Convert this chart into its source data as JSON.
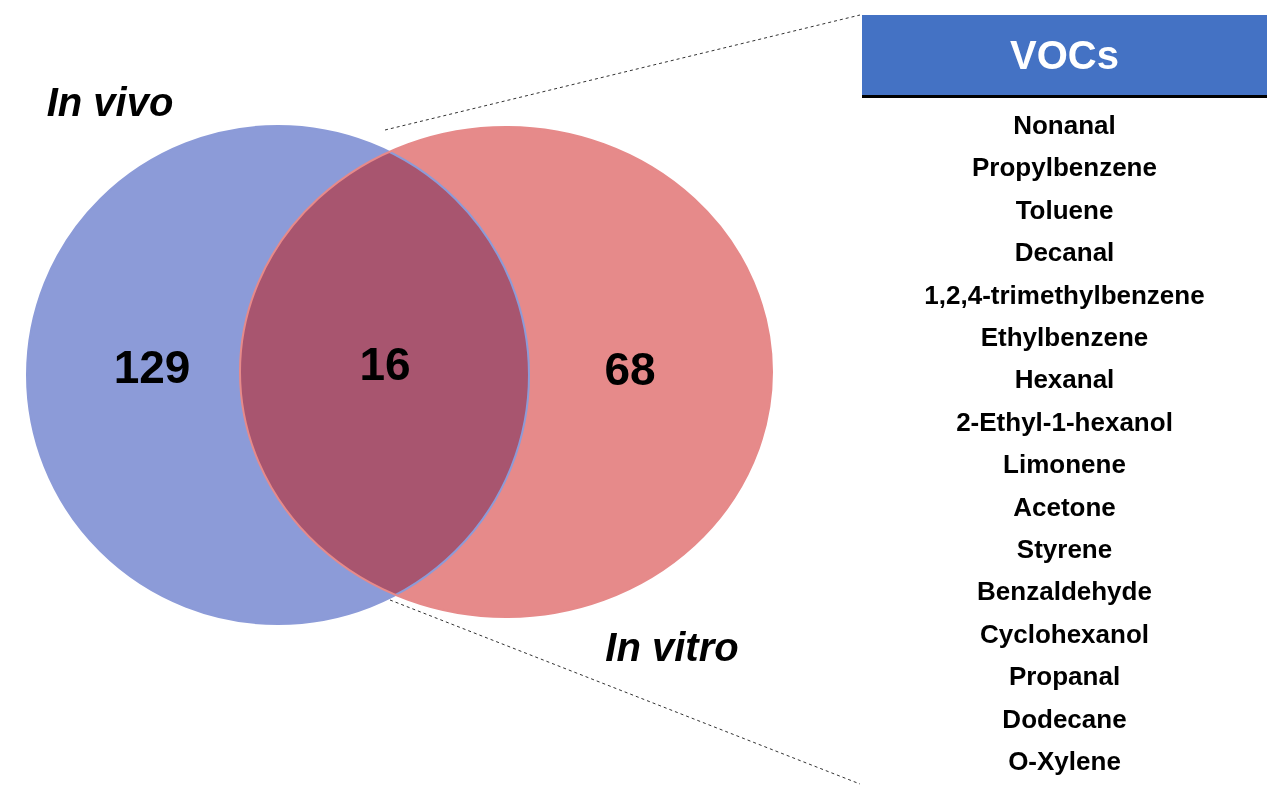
{
  "chart_data": [
    {
      "type": "other",
      "categories": [
        "In vivo",
        null,
        "In vitro"
      ],
      "values": [
        129,
        16,
        68
      ],
      "colors": [
        "#8c9bd8",
        "#a8556f",
        "#e68a8a"
      ],
      "data_labels": true
    },
    {
      "type": "other",
      "title": "VOCs",
      "annotations": [
        "Nonanal",
        "Propylbenzene",
        "Toluene",
        "Decanal",
        "1,2,4-trimethylbenzene",
        "Ethylbenzene",
        "Hexanal",
        "2-Ethyl-1-hexanol",
        "Limonene",
        "Acetone",
        "Styrene",
        "Benzaldehyde",
        "Cyclohexanol",
        "Propanal",
        "Dodecane",
        "O-Xylene"
      ]
    }
  ]
}
